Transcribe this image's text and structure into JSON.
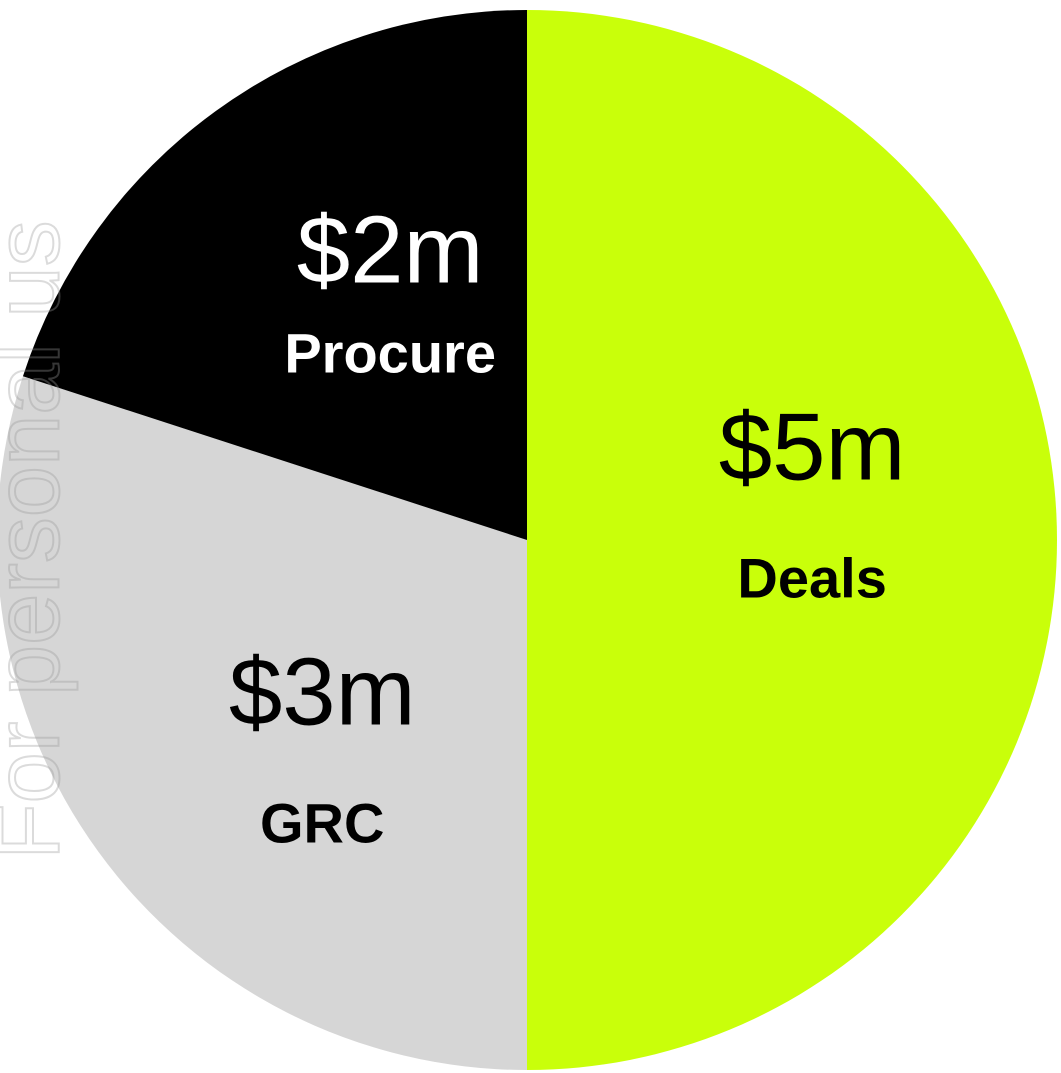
{
  "watermark_text": "For personal us",
  "chart_data": {
    "type": "pie",
    "start_angle_deg": 0,
    "direction": "clockwise",
    "slices": [
      {
        "label": "Deals",
        "value": 5,
        "value_label": "$5m",
        "color": "#c9ff0a",
        "text_color": "#000000"
      },
      {
        "label": "GRC",
        "value": 3,
        "value_label": "$3m",
        "color": "#d6d6d6",
        "text_color": "#000000"
      },
      {
        "label": "Procure",
        "value": 2,
        "value_label": "$2m",
        "color": "#000000",
        "text_color": "#ffffff"
      }
    ]
  }
}
